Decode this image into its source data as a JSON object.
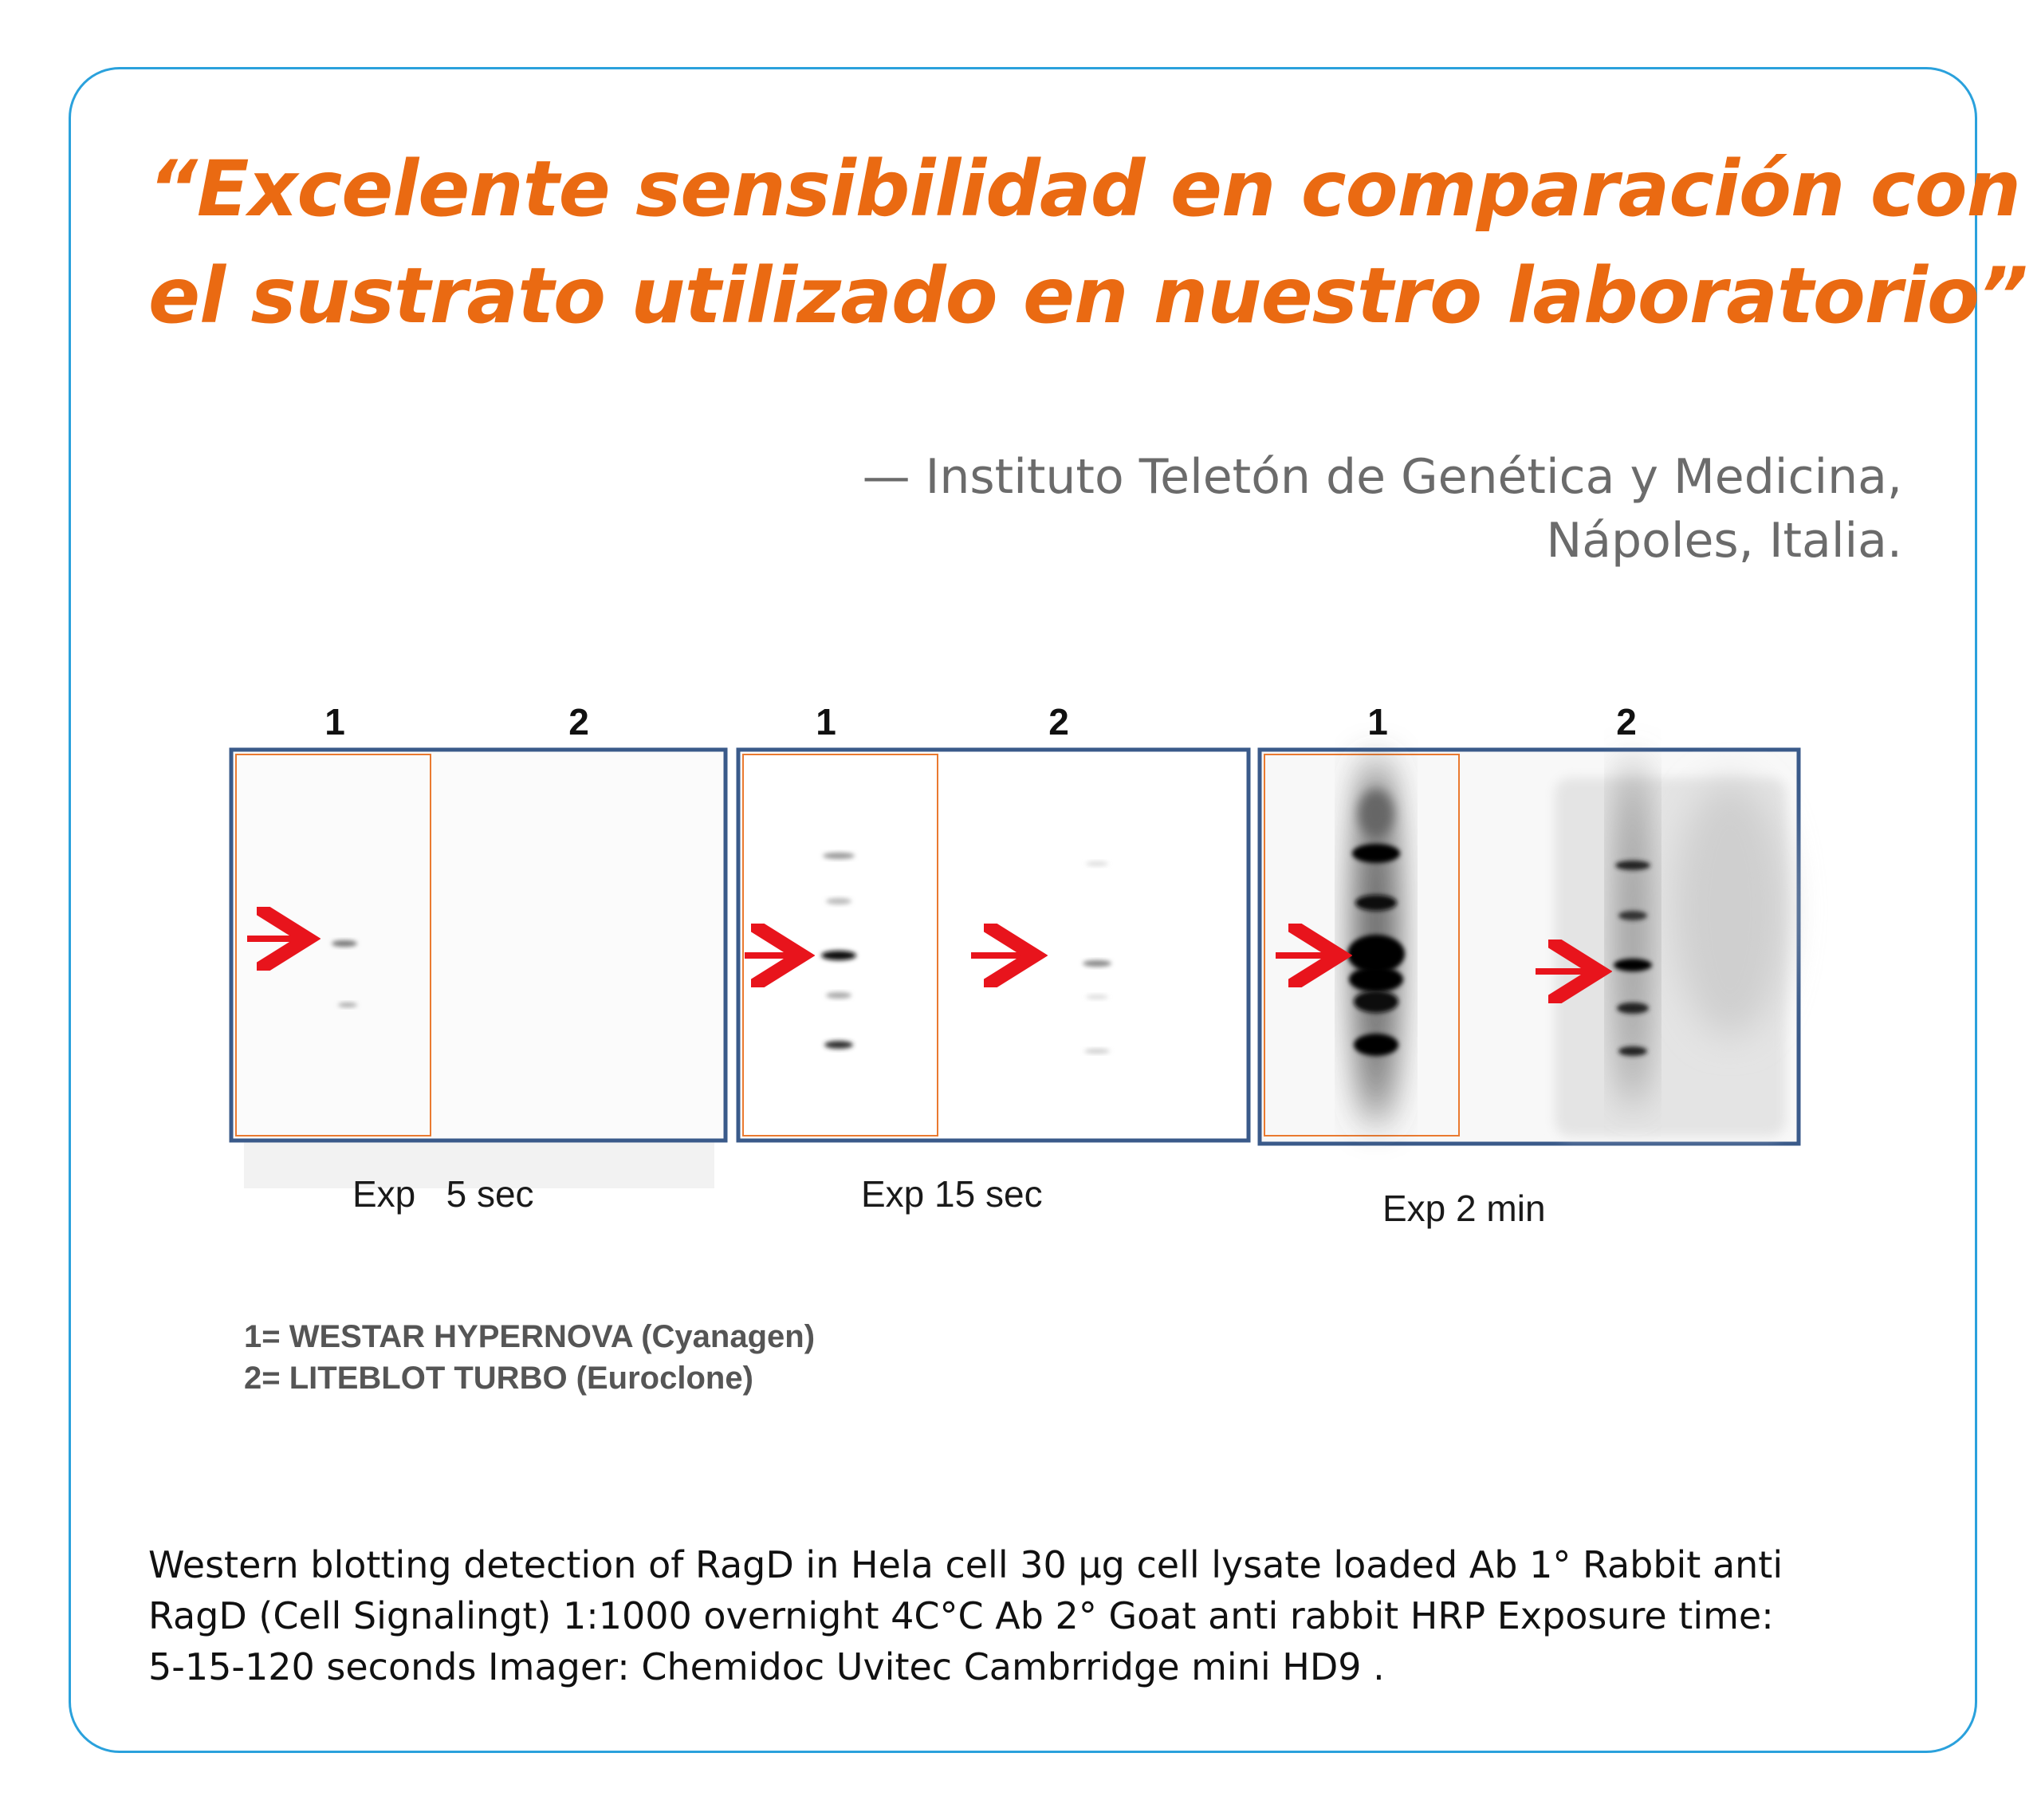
{
  "quote": {
    "line1": "“Excelente sensibilidad en comparación con",
    "line2": "el sustrato utilizado en nuestro laboratorio”"
  },
  "attribution": {
    "line1": "— Instituto Teletón de Genética y Medicina,",
    "line2": "Nápoles, Italia."
  },
  "figure": {
    "panels": [
      {
        "lane1": "1",
        "lane2": "2",
        "exposure": "Exp   5 sec"
      },
      {
        "lane1": "1",
        "lane2": "2",
        "exposure": "Exp 15 sec"
      },
      {
        "lane1": "1",
        "lane2": "2",
        "exposure": "Exp 2 min"
      }
    ],
    "legend": {
      "line1": "1= WESTAR HYPERNOVA (Cyanagen)",
      "line2": "2= LITEBLOT TURBO (Euroclone)"
    }
  },
  "caption": {
    "line1": "Western blotting detection of RagD in Hela cell 30 µg cell lysate loaded Ab 1° Rabbit anti",
    "line2": "RagD (Cell Signalingt) 1:1000 overnight 4C°C Ab 2° Goat anti rabbit HRP Exposure time:",
    "line3": "5-15-120 seconds Imager: Chemidoc Uvitec Cambrridge mini HD9 ."
  },
  "colors": {
    "accent": "#ea6a12",
    "card_border": "#2aa1dc",
    "panel_border": "#3a5a8a",
    "arrow": "#e8141c"
  }
}
